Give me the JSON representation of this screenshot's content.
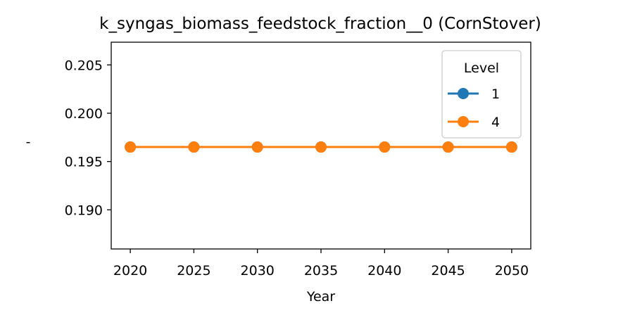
{
  "chart_data": {
    "type": "line",
    "title": "k_syngas_biomass_feedstock_fraction__0 (CornStover)",
    "xlabel": "Year",
    "ylabel": "-",
    "x": [
      2020,
      2025,
      2030,
      2035,
      2040,
      2045,
      2050
    ],
    "xticks": [
      "2020",
      "2025",
      "2030",
      "2035",
      "2040",
      "2045",
      "2050"
    ],
    "yticks": [
      "0.190",
      "0.195",
      "0.200",
      "0.205"
    ],
    "ytick_values": [
      0.19,
      0.195,
      0.2,
      0.205
    ],
    "xlim": [
      2018.5,
      2051.5
    ],
    "ylim": [
      0.18595,
      0.20735
    ],
    "grid": false,
    "legend": {
      "title": "Level",
      "placement": "top-right"
    },
    "series": [
      {
        "name": "1",
        "color": "#1f77b4",
        "values": [
          0.1965,
          0.1965,
          0.1965,
          0.1965,
          0.1965,
          0.1965,
          0.1965
        ]
      },
      {
        "name": "4",
        "color": "#ff7f0e",
        "values": [
          0.1965,
          0.1965,
          0.1965,
          0.1965,
          0.1965,
          0.1965,
          0.1965
        ]
      }
    ]
  }
}
